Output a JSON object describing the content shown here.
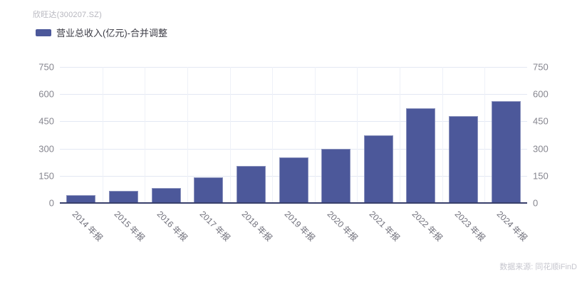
{
  "window": {
    "title": "欣旺达(300207.SZ)"
  },
  "legend": {
    "label": "营业总收入(亿元)-合并调整"
  },
  "footer": {
    "source": "数据来源: 同花顺iFinD"
  },
  "colors": {
    "bar": "#4c589a",
    "axis_line": "#39406b",
    "gridline": "#e3e8f3",
    "split_line": "#eef1f8"
  },
  "chart_data": {
    "type": "bar",
    "title": "欣旺达(300207.SZ)",
    "legend_entries": [
      "营业总收入(亿元)-合并调整"
    ],
    "legend_position": "top-left",
    "categories": [
      "2014 年报",
      "2015 年报",
      "2016 年报",
      "2017 年报",
      "2018 年报",
      "2019 年报",
      "2020 年报",
      "2021 年报",
      "2022 年报",
      "2023 年报",
      "2024 年报"
    ],
    "series": [
      {
        "name": "营业总收入(亿元)-合并调整",
        "values": [
          42,
          65,
          81,
          140,
          203,
          252,
          297,
          374,
          522,
          479,
          560
        ]
      }
    ],
    "xlabel": "",
    "ylabel": "",
    "ylim": [
      0,
      750
    ],
    "yticks": [
      0,
      150,
      300,
      450,
      600,
      750
    ],
    "dual_y_axis": true,
    "grid": true,
    "x_tick_rotation_deg": 45,
    "bar_color": "#4c589a"
  }
}
